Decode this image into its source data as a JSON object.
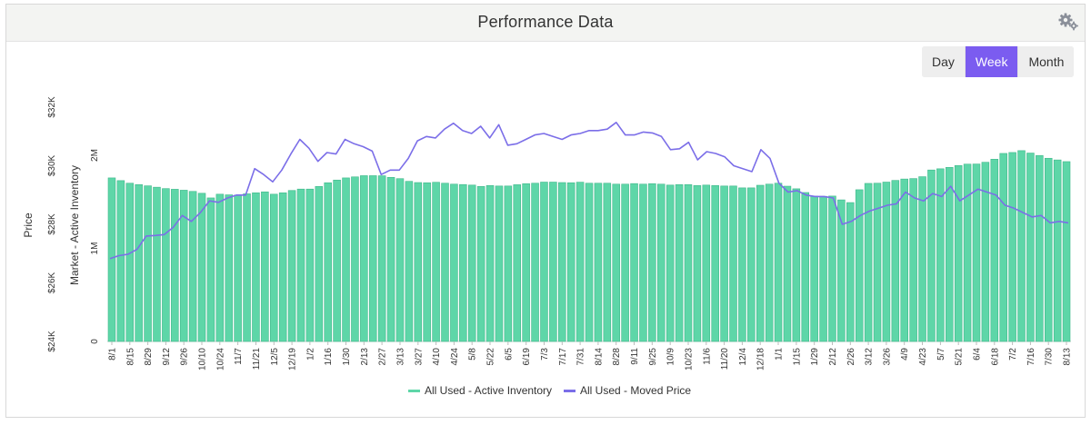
{
  "header": {
    "title": "Performance Data",
    "settings_icon": "gears-icon"
  },
  "range_buttons": [
    {
      "label": "Day",
      "active": false
    },
    {
      "label": "Week",
      "active": true
    },
    {
      "label": "Month",
      "active": false
    }
  ],
  "colors": {
    "bars": "#5ed6a8",
    "bar_stroke": "#3fb88a",
    "line": "#7b6ee8",
    "active_button": "#7b5cf0"
  },
  "chart_data": {
    "type": "bar",
    "xticks": [
      "8/1",
      "8/15",
      "8/29",
      "9/12",
      "9/26",
      "10/10",
      "10/24",
      "11/7",
      "11/21",
      "12/5",
      "12/19",
      "1/2",
      "1/16",
      "1/30",
      "2/13",
      "2/27",
      "3/13",
      "3/27",
      "4/10",
      "4/24",
      "5/8",
      "5/22",
      "6/5",
      "6/19",
      "7/3",
      "7/17",
      "7/31",
      "8/14",
      "8/28",
      "9/11",
      "9/25",
      "10/9",
      "10/23",
      "11/6",
      "11/20",
      "12/4",
      "12/18",
      "1/1",
      "1/15",
      "1/29",
      "2/12",
      "2/26",
      "3/12",
      "3/26",
      "4/9",
      "4/23",
      "5/7",
      "5/21",
      "6/4",
      "6/18",
      "7/2",
      "7/16",
      "7/30",
      "8/13"
    ],
    "inventory_axis": {
      "label": "Market - Active Inventory",
      "ticks": [
        "0",
        "1M",
        "2M"
      ],
      "tick_values": [
        0,
        1000000,
        2000000
      ]
    },
    "price_axis": {
      "label": "Price",
      "ticks": [
        "$24K",
        "$26K",
        "$28K",
        "$30K",
        "$32K"
      ],
      "tick_values": [
        24000,
        26000,
        28000,
        30000,
        32000
      ],
      "range": [
        24000,
        32000
      ]
    },
    "series": [
      {
        "name": "All Used - Active Inventory",
        "type": "bar",
        "axis": "inventory",
        "values": [
          1757000,
          1728000,
          1700000,
          1685000,
          1672000,
          1657000,
          1642000,
          1635000,
          1625000,
          1612000,
          1592000,
          1542000,
          1582000,
          1575000,
          1572000,
          1586000,
          1597000,
          1607000,
          1582000,
          1597000,
          1622000,
          1637000,
          1637000,
          1665000,
          1705000,
          1734000,
          1757000,
          1768000,
          1781000,
          1781000,
          1780000,
          1763000,
          1749000,
          1720000,
          1707000,
          1705000,
          1710000,
          1700000,
          1690000,
          1686000,
          1680000,
          1665000,
          1675000,
          1670000,
          1670000,
          1684000,
          1695000,
          1700000,
          1712000,
          1712000,
          1707000,
          1705000,
          1711000,
          1700000,
          1700000,
          1700000,
          1690000,
          1690000,
          1696000,
          1690000,
          1695000,
          1690000,
          1680000,
          1685000,
          1685000,
          1675000,
          1680000,
          1675000,
          1670000,
          1670000,
          1650000,
          1650000,
          1678000,
          1690000,
          1700000,
          1668000,
          1640000,
          1600000,
          1561000,
          1559000,
          1562000,
          1521000,
          1492000,
          1630000,
          1698000,
          1700000,
          1712000,
          1730000,
          1745000,
          1750000,
          1770000,
          1842000,
          1855000,
          1870000,
          1890000,
          1905000,
          1906000,
          1925000,
          1958000,
          2020000,
          2030000,
          2050000,
          2024000,
          1998000,
          1968000,
          1950000,
          1932000
        ]
      },
      {
        "name": "All Used - Moved Price",
        "type": "line",
        "axis": "price",
        "values": [
          26830,
          26930,
          26980,
          27150,
          27600,
          27620,
          27650,
          27900,
          28300,
          28100,
          28400,
          28800,
          28750,
          28900,
          29000,
          29000,
          29900,
          29700,
          29450,
          29850,
          30400,
          30900,
          30600,
          30150,
          30450,
          30400,
          30900,
          30750,
          30650,
          30500,
          29700,
          29850,
          29850,
          30250,
          30850,
          31000,
          30950,
          31250,
          31450,
          31200,
          31100,
          31350,
          30950,
          31400,
          30700,
          30750,
          30900,
          31050,
          31100,
          31000,
          30900,
          31050,
          31100,
          31200,
          31200,
          31250,
          31480,
          31050,
          31050,
          31150,
          31120,
          31000,
          30550,
          30580,
          30800,
          30200,
          30480,
          30420,
          30300,
          30000,
          29900,
          29800,
          30550,
          30250,
          29400,
          29100,
          29150,
          29000,
          28950,
          28950,
          28900,
          28000,
          28100,
          28300,
          28450,
          28550,
          28650,
          28700,
          29100,
          28900,
          28800,
          29050,
          28950,
          29300,
          28800,
          29000,
          29200,
          29100,
          29000,
          28650,
          28550,
          28400,
          28250,
          28300,
          28050,
          28100,
          28050
        ]
      }
    ]
  }
}
